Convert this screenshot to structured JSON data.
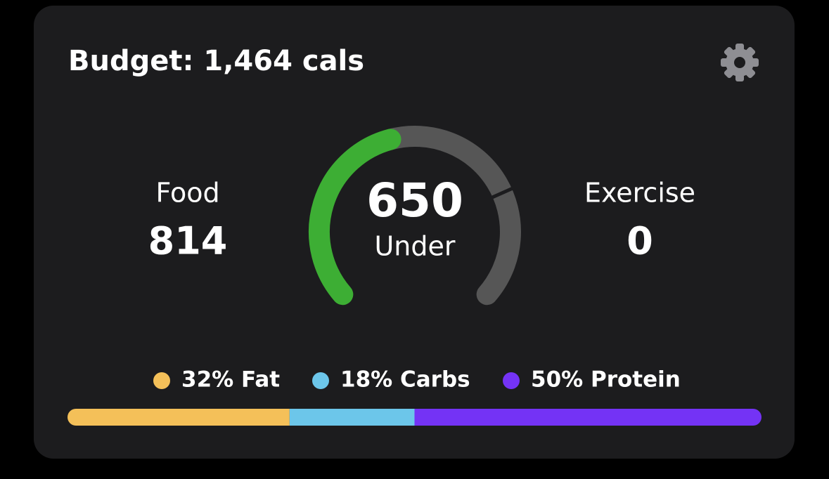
{
  "header": {
    "title": "Budget: 1,464 cals"
  },
  "summary": {
    "food_label": "Food",
    "food_value": 814,
    "exercise_label": "Exercise",
    "exercise_value": 0,
    "remaining_value": 650,
    "remaining_label": "Under",
    "remaining_color": "#3dae34",
    "used_color": "#565656"
  },
  "macros": [
    {
      "label": "32% Fat",
      "value": 32,
      "color": "#f4c059"
    },
    {
      "label": "18% Carbs",
      "value": 18,
      "color": "#6cc6ea"
    },
    {
      "label": "50% Protein",
      "value": 50,
      "color": "#7433f5"
    }
  ]
}
